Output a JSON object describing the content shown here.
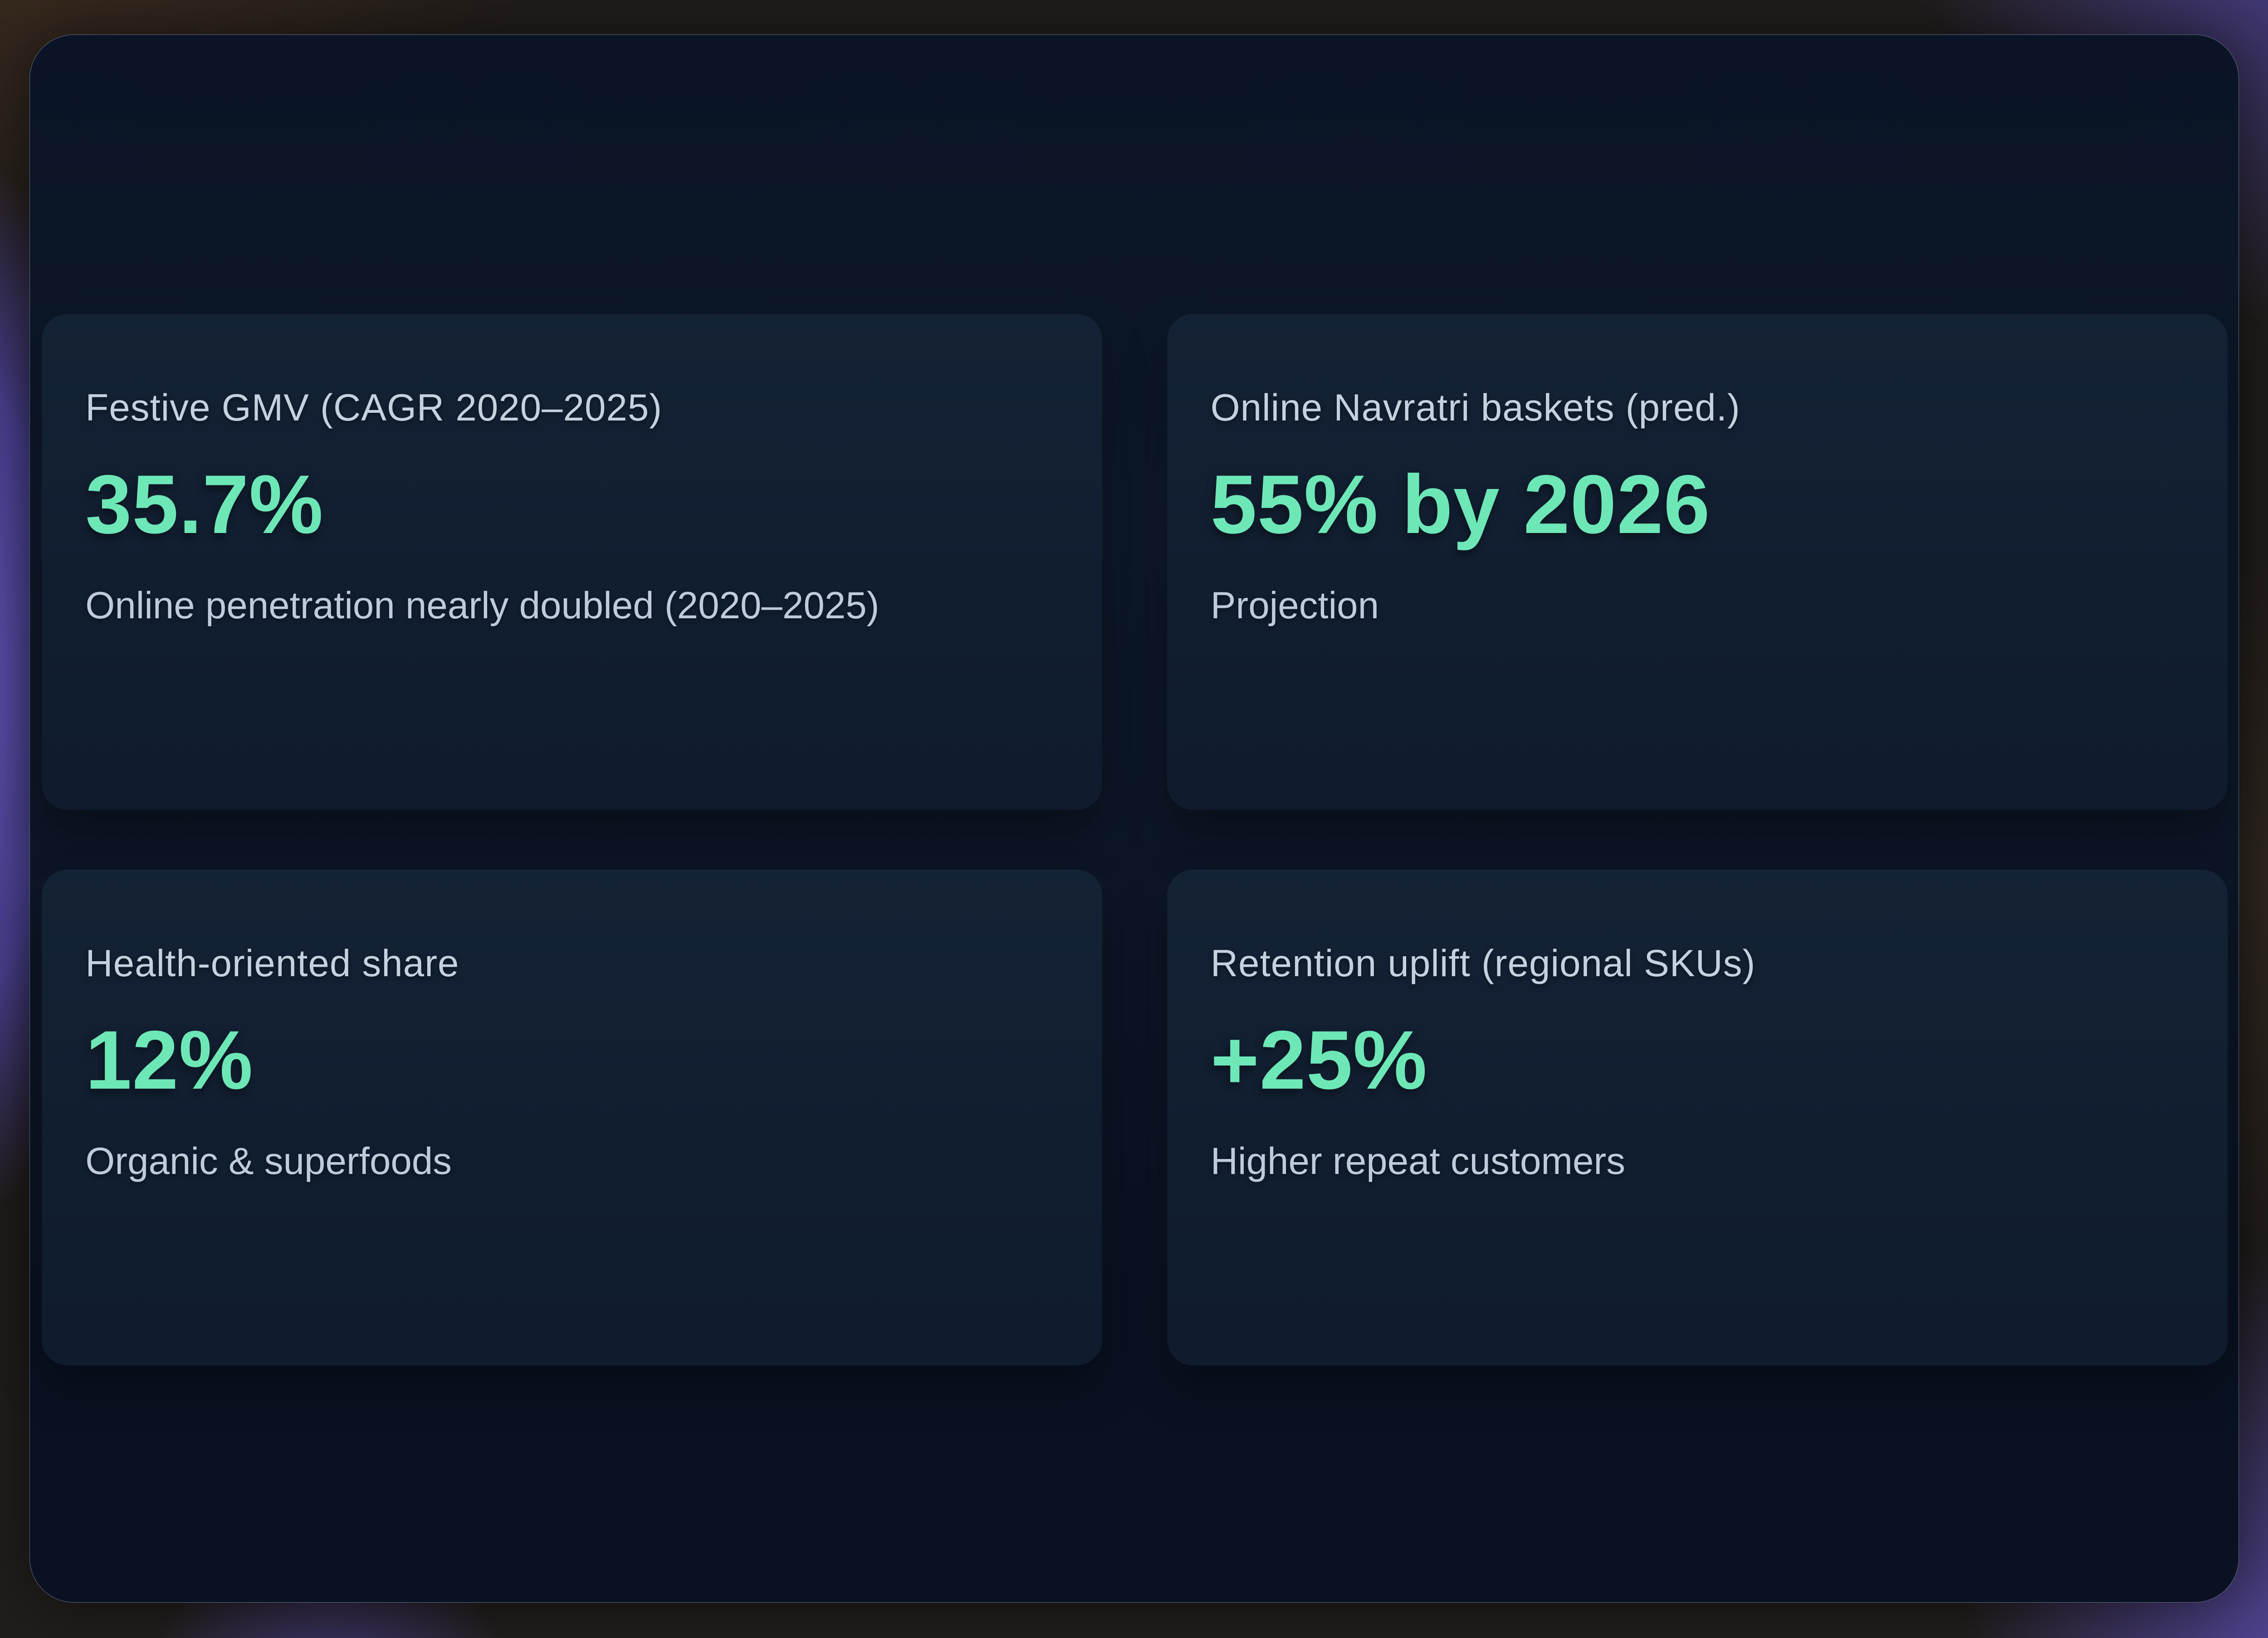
{
  "theme": {
    "background_base": "#211d1b",
    "background_purple_accent": "#5b4db0",
    "panel_background": "#0c1626",
    "panel_border": "#a3b5d1",
    "card_background": "#121f31",
    "accent_green": "#6ee7b7",
    "label_color": "#c6d1e0"
  },
  "cards": [
    {
      "label": "Festive GMV (CAGR 2020–2025)",
      "value": "35.7%",
      "description": "Online penetration nearly doubled (2020–2025)"
    },
    {
      "label": "Online Navratri baskets (pred.)",
      "value": "55% by 2026",
      "description": "Projection"
    },
    {
      "label": "Health-oriented share",
      "value": "12%",
      "description": "Organic & superfoods"
    },
    {
      "label": "Retention uplift (regional SKUs)",
      "value": "+25%",
      "description": "Higher repeat customers"
    }
  ]
}
